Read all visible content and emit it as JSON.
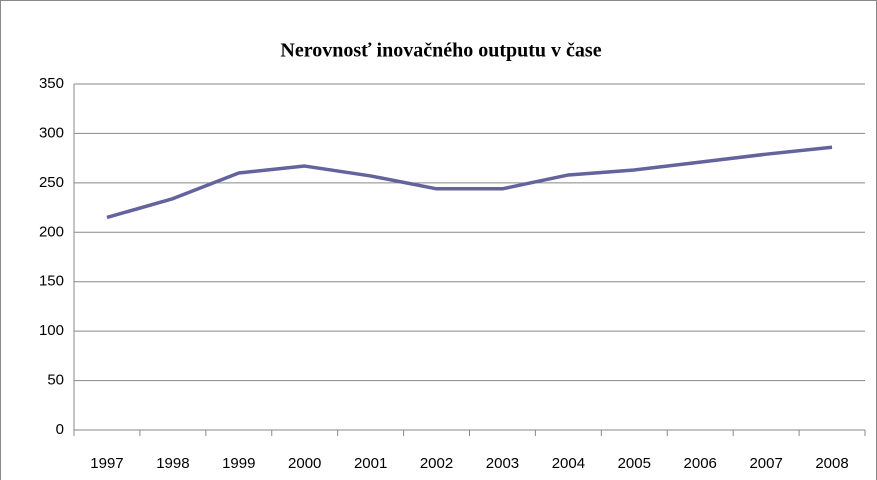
{
  "chart_data": {
    "type": "line",
    "title": "Nerovnosť inovačného outputu v čase",
    "categories": [
      "1997",
      "1998",
      "1999",
      "2000",
      "2001",
      "2002",
      "2003",
      "2004",
      "2005",
      "2006",
      "2007",
      "2008"
    ],
    "values": [
      215,
      234,
      260,
      267,
      257,
      244,
      244,
      258,
      263,
      271,
      279,
      286
    ],
    "color": "#63639e",
    "ylim": [
      0,
      350
    ],
    "yticks": [
      0,
      50,
      100,
      150,
      200,
      250,
      300,
      350
    ],
    "grid": true
  }
}
